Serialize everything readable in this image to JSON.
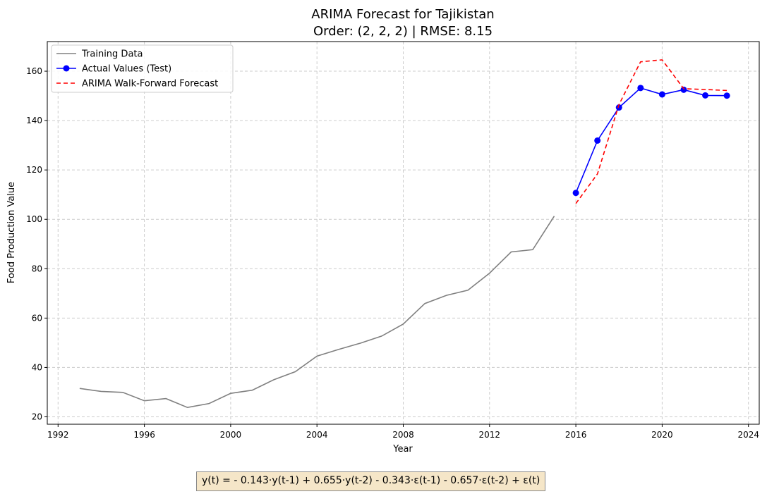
{
  "chart_data": {
    "type": "line",
    "title": "ARIMA Forecast for Tajikistan",
    "subtitle": "Order: (2, 2, 2) | RMSE: 8.15",
    "xlabel": "Year",
    "ylabel": "Food Production Value",
    "xlim": [
      1991.5,
      2024.5
    ],
    "ylim": [
      17,
      172
    ],
    "x_ticks": [
      1992,
      1996,
      2000,
      2004,
      2008,
      2012,
      2016,
      2020,
      2024
    ],
    "y_ticks": [
      20,
      40,
      60,
      80,
      100,
      120,
      140,
      160
    ],
    "grid": true,
    "legend_position": "top-left",
    "series": [
      {
        "name": "Training Data",
        "color": "#808080",
        "style": "solid",
        "markers": false,
        "x": [
          1993,
          1994,
          1995,
          1996,
          1997,
          1998,
          1999,
          2000,
          2001,
          2002,
          2003,
          2004,
          2005,
          2006,
          2007,
          2008,
          2009,
          2010,
          2011,
          2012,
          2013,
          2014,
          2015
        ],
        "y": [
          31.5,
          30.3,
          29.9,
          26.5,
          27.4,
          23.8,
          25.4,
          29.5,
          30.8,
          35.0,
          38.3,
          44.6,
          47.3,
          49.8,
          52.7,
          57.6,
          65.9,
          69.2,
          71.3,
          78.2,
          86.8,
          87.7,
          101.3
        ]
      },
      {
        "name": "Actual Values (Test)",
        "color": "#0000ff",
        "style": "solid",
        "markers": true,
        "x": [
          2016,
          2017,
          2018,
          2019,
          2020,
          2021,
          2022,
          2023
        ],
        "y": [
          110.7,
          131.9,
          145.3,
          153.2,
          150.6,
          152.5,
          150.2,
          150.1
        ]
      },
      {
        "name": "ARIMA Walk-Forward Forecast",
        "color": "#ff0000",
        "style": "dashed",
        "markers": false,
        "x": [
          2016,
          2017,
          2018,
          2019,
          2020,
          2021,
          2022,
          2023
        ],
        "y": [
          106.4,
          118.4,
          146.5,
          163.8,
          164.6,
          152.9,
          152.6,
          152.2
        ]
      }
    ]
  },
  "equation": "y(t) = - 0.143·y(t-1) + 0.655·y(t-2) - 0.343·ε(t-1) - 0.657·ε(t-2) + ε(t)"
}
